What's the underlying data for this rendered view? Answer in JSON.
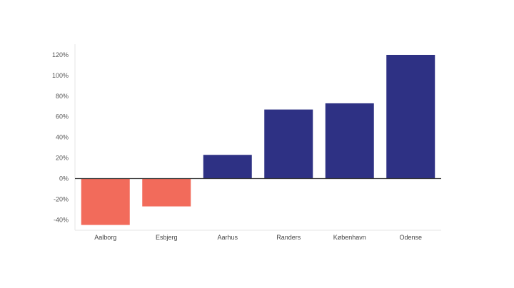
{
  "chart_data": {
    "type": "bar",
    "categories": [
      "Aalborg",
      "Esbjerg",
      "Aarhus",
      "Randers",
      "København",
      "Odense"
    ],
    "values": [
      -45,
      -27,
      23,
      67,
      73,
      120
    ],
    "ylim": [
      -48,
      128
    ],
    "yticks": [
      120,
      100,
      80,
      60,
      40,
      20,
      0,
      -20,
      -40
    ],
    "ytick_labels": [
      "120%",
      "100%",
      "80%",
      "60%",
      "40%",
      "20%",
      "0%",
      "-20%",
      "-40%"
    ],
    "colors": {
      "negative": "#F26B5B",
      "positive": "#2E3184",
      "axis": "#333333",
      "frame": "#e6e6e6"
    },
    "grid": false,
    "legend": "none"
  }
}
